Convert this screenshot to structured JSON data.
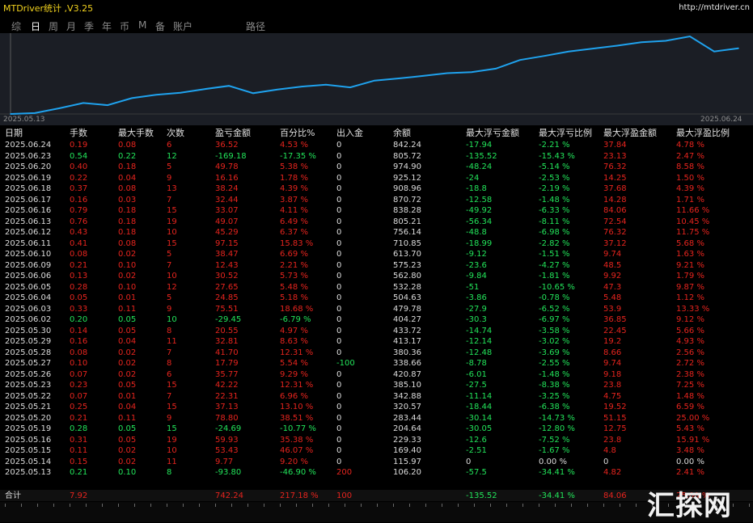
{
  "app": {
    "title": "MTDriver统计 ,V3.25",
    "url": "http://mtdriver.cn"
  },
  "tabs": [
    {
      "label": "综",
      "active": false
    },
    {
      "label": "日",
      "active": true
    },
    {
      "label": "周",
      "active": false
    },
    {
      "label": "月",
      "active": false
    },
    {
      "label": "季",
      "active": false
    },
    {
      "label": "年",
      "active": false
    },
    {
      "label": "币",
      "active": false
    },
    {
      "label": "M",
      "active": false
    },
    {
      "label": "备",
      "active": false
    },
    {
      "label": "账户",
      "active": false
    },
    {
      "label": "路径",
      "active": false
    }
  ],
  "chart_data": {
    "type": "line",
    "x_start": "2025.05.13",
    "x_end": "2025.06.24",
    "y": [
      106.2,
      115.97,
      169.4,
      229.33,
      204.64,
      283.44,
      320.57,
      342.88,
      385.1,
      420.87,
      338.66,
      380.36,
      413.17,
      433.72,
      404.27,
      479.78,
      504.63,
      532.28,
      562.8,
      575.23,
      613.7,
      710.85,
      756.14,
      805.21,
      838.28,
      870.72,
      908.96,
      925.12,
      974.9,
      805.72,
      842.24
    ],
    "line_color": "#1fa2ee"
  },
  "columns": [
    "日期",
    "手数",
    "最大手数",
    "次数",
    "盈亏金额",
    "百分比%",
    "出入金",
    "余额",
    "最大浮亏金额",
    "最大浮亏比例",
    "最大浮盈金额",
    "最大浮盈比例"
  ],
  "rows": [
    [
      "2025.06.24",
      "0.19",
      "0.08",
      "6",
      "36.52",
      "4.53 %",
      "0",
      "842.24",
      "-17.94",
      "-2.21 %",
      "37.84",
      "4.78 %",
      "r"
    ],
    [
      "2025.06.23",
      "0.54",
      "0.22",
      "12",
      "-169.18",
      "-17.35 %",
      "0",
      "805.72",
      "-135.52",
      "-15.43 %",
      "23.13",
      "2.47 %",
      "g"
    ],
    [
      "2025.06.20",
      "0.40",
      "0.18",
      "5",
      "49.78",
      "5.38 %",
      "0",
      "974.90",
      "-48.24",
      "-5.14 %",
      "76.32",
      "8.58 %",
      "r"
    ],
    [
      "2025.06.19",
      "0.22",
      "0.04",
      "9",
      "16.16",
      "1.78 %",
      "0",
      "925.12",
      "-24",
      "-2.53 %",
      "14.25",
      "1.50 %",
      "r"
    ],
    [
      "2025.06.18",
      "0.37",
      "0.08",
      "13",
      "38.24",
      "4.39 %",
      "0",
      "908.96",
      "-18.8",
      "-2.19 %",
      "37.68",
      "4.39 %",
      "r"
    ],
    [
      "2025.06.17",
      "0.16",
      "0.03",
      "7",
      "32.44",
      "3.87 %",
      "0",
      "870.72",
      "-12.58",
      "-1.48 %",
      "14.28",
      "1.71 %",
      "r"
    ],
    [
      "2025.06.16",
      "0.79",
      "0.18",
      "15",
      "33.07",
      "4.11 %",
      "0",
      "838.28",
      "-49.92",
      "-6.33 %",
      "84.06",
      "11.66 %",
      "r"
    ],
    [
      "2025.06.13",
      "0.76",
      "0.18",
      "19",
      "49.07",
      "6.49 %",
      "0",
      "805.21",
      "-56.34",
      "-8.11 %",
      "72.54",
      "10.45 %",
      "r"
    ],
    [
      "2025.06.12",
      "0.43",
      "0.18",
      "10",
      "45.29",
      "6.37 %",
      "0",
      "756.14",
      "-48.8",
      "-6.98 %",
      "76.32",
      "11.75 %",
      "r"
    ],
    [
      "2025.06.11",
      "0.41",
      "0.08",
      "15",
      "97.15",
      "15.83 %",
      "0",
      "710.85",
      "-18.99",
      "-2.82 %",
      "37.12",
      "5.68 %",
      "r"
    ],
    [
      "2025.06.10",
      "0.08",
      "0.02",
      "5",
      "38.47",
      "6.69 %",
      "0",
      "613.70",
      "-9.12",
      "-1.51 %",
      "9.74",
      "1.63 %",
      "r"
    ],
    [
      "2025.06.09",
      "0.21",
      "0.10",
      "7",
      "12.43",
      "2.21 %",
      "0",
      "575.23",
      "-23.6",
      "-4.27 %",
      "48.5",
      "9.21 %",
      "r"
    ],
    [
      "2025.06.06",
      "0.13",
      "0.02",
      "10",
      "30.52",
      "5.73 %",
      "0",
      "562.80",
      "-9.84",
      "-1.81 %",
      "9.92",
      "1.79 %",
      "r"
    ],
    [
      "2025.06.05",
      "0.28",
      "0.10",
      "12",
      "27.65",
      "5.48 %",
      "0",
      "532.28",
      "-51",
      "-10.65 %",
      "47.3",
      "9.87 %",
      "r"
    ],
    [
      "2025.06.04",
      "0.05",
      "0.01",
      "5",
      "24.85",
      "5.18 %",
      "0",
      "504.63",
      "-3.86",
      "-0.78 %",
      "5.48",
      "1.12 %",
      "r"
    ],
    [
      "2025.06.03",
      "0.33",
      "0.11",
      "9",
      "75.51",
      "18.68 %",
      "0",
      "479.78",
      "-27.9",
      "-6.52 %",
      "53.9",
      "13.33 %",
      "r"
    ],
    [
      "2025.06.02",
      "0.20",
      "0.05",
      "10",
      "-29.45",
      "-6.79 %",
      "0",
      "404.27",
      "-30.3",
      "-6.97 %",
      "36.85",
      "9.12 %",
      "g"
    ],
    [
      "2025.05.30",
      "0.14",
      "0.05",
      "8",
      "20.55",
      "4.97 %",
      "0",
      "433.72",
      "-14.74",
      "-3.58 %",
      "22.45",
      "5.66 %",
      "r"
    ],
    [
      "2025.05.29",
      "0.16",
      "0.04",
      "11",
      "32.81",
      "8.63 %",
      "0",
      "413.17",
      "-12.14",
      "-3.02 %",
      "19.2",
      "4.93 %",
      "r"
    ],
    [
      "2025.05.28",
      "0.08",
      "0.02",
      "7",
      "41.70",
      "12.31 %",
      "0",
      "380.36",
      "-12.48",
      "-3.69 %",
      "8.66",
      "2.56 %",
      "r"
    ],
    [
      "2025.05.27",
      "0.10",
      "0.02",
      "8",
      "17.79",
      "5.54 %",
      "-100",
      "338.66",
      "-8.78",
      "-2.55 %",
      "9.74",
      "2.72 %",
      "r"
    ],
    [
      "2025.05.26",
      "0.07",
      "0.02",
      "6",
      "35.77",
      "9.29 %",
      "0",
      "420.87",
      "-6.01",
      "-1.48 %",
      "9.18",
      "2.38 %",
      "r"
    ],
    [
      "2025.05.23",
      "0.23",
      "0.05",
      "15",
      "42.22",
      "12.31 %",
      "0",
      "385.10",
      "-27.5",
      "-8.38 %",
      "23.8",
      "7.25 %",
      "r"
    ],
    [
      "2025.05.22",
      "0.07",
      "0.01",
      "7",
      "22.31",
      "6.96 %",
      "0",
      "342.88",
      "-11.14",
      "-3.25 %",
      "4.75",
      "1.48 %",
      "r"
    ],
    [
      "2025.05.21",
      "0.25",
      "0.04",
      "15",
      "37.13",
      "13.10 %",
      "0",
      "320.57",
      "-18.44",
      "-6.38 %",
      "19.52",
      "6.59 %",
      "r"
    ],
    [
      "2025.05.20",
      "0.21",
      "0.11",
      "9",
      "78.80",
      "38.51 %",
      "0",
      "283.44",
      "-30.14",
      "-14.73 %",
      "51.15",
      "25.00 %",
      "r"
    ],
    [
      "2025.05.19",
      "0.28",
      "0.05",
      "15",
      "-24.69",
      "-10.77 %",
      "0",
      "204.64",
      "-30.05",
      "-12.80 %",
      "12.75",
      "5.43 %",
      "g"
    ],
    [
      "2025.05.16",
      "0.31",
      "0.05",
      "19",
      "59.93",
      "35.38 %",
      "0",
      "229.33",
      "-12.6",
      "-7.52 %",
      "23.8",
      "15.91 %",
      "r"
    ],
    [
      "2025.05.15",
      "0.11",
      "0.02",
      "10",
      "53.43",
      "46.07 %",
      "0",
      "169.40",
      "-2.51",
      "-1.67 %",
      "4.8",
      "3.48 %",
      "r"
    ],
    [
      "2025.05.14",
      "0.15",
      "0.02",
      "11",
      "9.77",
      "9.20 %",
      "0",
      "115.97",
      "0",
      "0.00 %",
      "0",
      "0.00 %",
      "r"
    ],
    [
      "2025.05.13",
      "0.21",
      "0.10",
      "8",
      "-93.80",
      "-46.90 %",
      "200",
      "106.20",
      "-57.5",
      "-34.41 %",
      "4.82",
      "2.41 %",
      "g"
    ]
  ],
  "total": [
    "合计",
    "7.92",
    "",
    "",
    "742.24",
    "217.18 %",
    "100",
    "",
    "-135.52",
    "-34.41 %",
    "84.06",
    "25.00 %"
  ],
  "watermark": "汇探网"
}
